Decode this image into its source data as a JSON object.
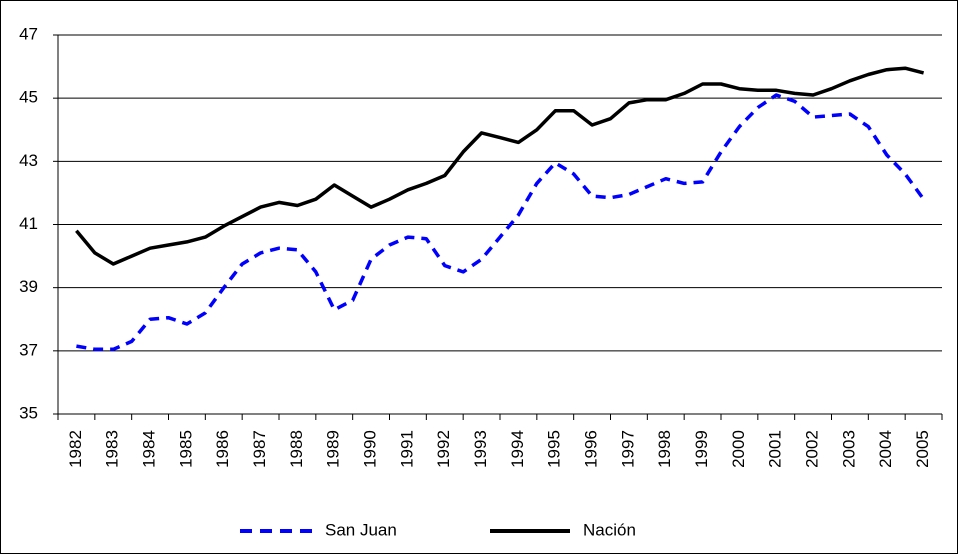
{
  "chart_data": {
    "type": "line",
    "categories": [
      "1982",
      null,
      "1983",
      null,
      "1984",
      null,
      "1985",
      null,
      "1986",
      null,
      "1987",
      null,
      "1988",
      null,
      "1989",
      null,
      "1990",
      null,
      "1991",
      null,
      "1992",
      null,
      "1993",
      null,
      "1994",
      null,
      "1995",
      null,
      "1996",
      null,
      "1997",
      null,
      "1998",
      null,
      "1999",
      null,
      "2000",
      null,
      "2001",
      null,
      "2002",
      null,
      "2003",
      null,
      "2004",
      null,
      "2005"
    ],
    "series": [
      {
        "name": "San Juan",
        "color": "#0000ff",
        "dashed": true,
        "values": [
          37.15,
          37.05,
          37.05,
          37.3,
          38.0,
          38.05,
          37.85,
          38.2,
          39.0,
          39.75,
          40.1,
          40.25,
          40.2,
          39.5,
          38.3,
          38.6,
          39.9,
          40.35,
          40.6,
          40.55,
          39.7,
          39.5,
          39.9,
          40.6,
          41.3,
          42.3,
          42.95,
          42.6,
          41.9,
          41.85,
          41.95,
          42.2,
          42.45,
          42.3,
          42.35,
          43.3,
          44.1,
          44.7,
          45.1,
          44.9,
          44.4,
          44.45,
          44.5,
          44.1,
          43.2,
          42.6,
          41.8
        ]
      },
      {
        "name": "Nación",
        "color": "#000000",
        "dashed": false,
        "values": [
          40.8,
          40.1,
          39.75,
          40.0,
          40.25,
          40.35,
          40.45,
          40.6,
          40.95,
          41.25,
          41.55,
          41.7,
          41.6,
          41.8,
          42.25,
          41.9,
          41.55,
          41.8,
          42.1,
          42.3,
          42.55,
          43.3,
          43.9,
          43.75,
          43.6,
          44.0,
          44.6,
          44.6,
          44.15,
          44.35,
          44.85,
          44.95,
          44.95,
          45.15,
          45.45,
          45.45,
          45.3,
          45.25,
          45.25,
          45.15,
          45.1,
          45.3,
          45.55,
          45.75,
          45.9,
          45.95,
          45.8
        ]
      }
    ],
    "ylim": [
      35,
      47
    ],
    "yticks": [
      35,
      37,
      39,
      41,
      43,
      45,
      47
    ],
    "grid": true,
    "legend": "bottom"
  }
}
